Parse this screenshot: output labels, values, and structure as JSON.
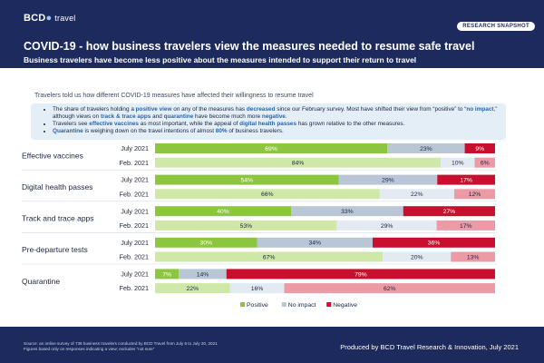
{
  "header": {
    "logo_text": "BCD",
    "logo_sub": "travel",
    "badge": "RESEARCH SNAPSHOT",
    "title": "COVID-19 - how business travelers view the measures needed to resume safe travel",
    "subtitle": "Business travelers have become less positive about the measures intended to support their return to travel"
  },
  "intro": "Travelers told us how different COVID-19 measures have affected their willingness to resume travel",
  "bullets": [
    [
      "The share of travelers holding a ",
      {
        "b": "positive view"
      },
      " on any of the measures has ",
      {
        "b": "decreased"
      },
      " since our February survey. Most have shifted their view from “positive” to “",
      {
        "b": "no impact"
      },
      ",” although views on ",
      {
        "b": "track & trace apps"
      },
      " and ",
      {
        "b": "quarantine"
      },
      " have become much more ",
      {
        "b": "negative"
      },
      "."
    ],
    [
      "Travelers see ",
      {
        "b": "effective vaccines"
      },
      " as most important, while the appeal of ",
      {
        "b": "digital health passes"
      },
      " has grown relative to the other measures."
    ],
    [
      {
        "b": "Quarantine"
      },
      " is weighing down on the travel intentions of almost ",
      {
        "b": "80%"
      },
      " of business travelers."
    ]
  ],
  "colors": {
    "positive_july": "#8cc63f",
    "positive_feb": "#cfe8a8",
    "noimpact_july": "#b9c6d6",
    "noimpact_feb": "#e4eaf1",
    "negative_july": "#c8102e",
    "negative_feb": "#ec9aa6"
  },
  "chart_data": {
    "type": "bar",
    "stacked": true,
    "orientation": "horizontal",
    "percent": true,
    "legend_position": "bottom",
    "segments": [
      "Positive",
      "No impact",
      "Negative"
    ],
    "groups": [
      {
        "category": "Effective  vaccines",
        "rows": [
          {
            "period": "July 2021",
            "values": [
              69,
              23,
              9
            ]
          },
          {
            "period": "Feb. 2021",
            "values": [
              84,
              10,
              6
            ]
          }
        ]
      },
      {
        "category": "Digital health passes",
        "rows": [
          {
            "period": "July 2021",
            "values": [
              54,
              29,
              17
            ]
          },
          {
            "period": "Feb. 2021",
            "values": [
              66,
              22,
              12
            ]
          }
        ]
      },
      {
        "category": "Track and trace apps",
        "rows": [
          {
            "period": "July 2021",
            "values": [
              40,
              33,
              27
            ]
          },
          {
            "period": "Feb. 2021",
            "values": [
              53,
              29,
              17
            ]
          }
        ]
      },
      {
        "category": "Pre-departure tests",
        "rows": [
          {
            "period": "July 2021",
            "values": [
              30,
              34,
              36
            ]
          },
          {
            "period": "Feb. 2021",
            "values": [
              67,
              20,
              13
            ]
          }
        ]
      },
      {
        "category": "Quarantine",
        "rows": [
          {
            "period": "July 2021",
            "values": [
              7,
              14,
              79
            ]
          },
          {
            "period": "Feb. 2021",
            "values": [
              22,
              16,
              62
            ]
          }
        ]
      }
    ]
  },
  "footer": {
    "source_lines": [
      "Source: an online survey of 738 business travelers conducted by BCD Travel from July 6 to July 20, 2021",
      "Figures based only on responses indicating a view; excludes “not sure”"
    ],
    "produced_by": "Produced by BCD Travel Research & Innovation, July 2021"
  }
}
